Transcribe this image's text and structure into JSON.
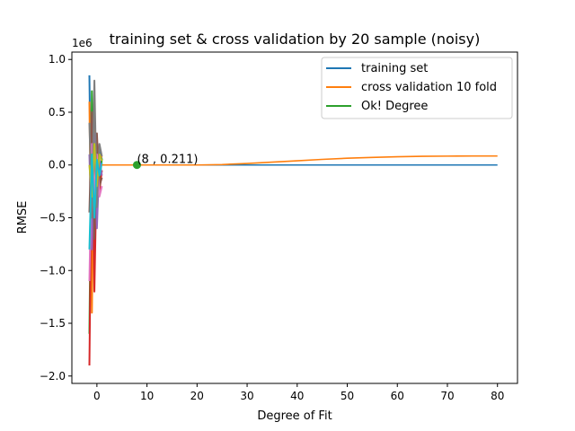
{
  "chart_data": {
    "type": "line",
    "title": "training set & cross validation by 20 sample (noisy)",
    "xlabel": "Degree of Fit",
    "ylabel": "RMSE",
    "y_offset_label": "1e6",
    "xlim": [
      -5,
      84
    ],
    "ylim": [
      -2.07,
      1.07
    ],
    "y_units_multiplier": 1000000,
    "x_ticks": [
      0,
      10,
      20,
      30,
      40,
      50,
      60,
      70,
      80
    ],
    "y_ticks": [
      -2.0,
      -1.5,
      -1.0,
      -0.5,
      0.0,
      0.5,
      1.0
    ],
    "x_tick_labels": [
      "0",
      "10",
      "20",
      "30",
      "40",
      "50",
      "60",
      "70",
      "80"
    ],
    "y_tick_labels": [
      "−2.0",
      "−1.5",
      "−1.0",
      "−0.5",
      "0.0",
      "0.5",
      "1.0"
    ],
    "grid": false,
    "legend_position": "top-right",
    "series": [
      {
        "name": "training set",
        "color": "#1f77b4",
        "x": [
          1,
          10,
          20,
          30,
          40,
          50,
          60,
          70,
          80
        ],
        "y": [
          0,
          0,
          0,
          0,
          0,
          0,
          0,
          0,
          0
        ]
      },
      {
        "name": "cross validation 10 fold",
        "color": "#ff7f0e",
        "x": [
          1,
          10,
          20,
          25,
          30,
          35,
          40,
          45,
          50,
          55,
          60,
          65,
          70,
          75,
          80
        ],
        "y": [
          0,
          0,
          0,
          0.004,
          0.014,
          0.027,
          0.04,
          0.053,
          0.064,
          0.072,
          0.078,
          0.082,
          0.084,
          0.085,
          0.085
        ]
      }
    ],
    "optimal_point": {
      "name": "Ok! Degree",
      "color": "#2ca02c",
      "x": 8,
      "y": 0.211,
      "label": "(8 , 0.211)"
    },
    "noise_fit_curves": {
      "x": [
        -1.5,
        -1.0,
        -0.5,
        0.0,
        0.5,
        1.0
      ],
      "colors": [
        "#1f77b4",
        "#ff7f0e",
        "#2ca02c",
        "#d62728",
        "#9467bd",
        "#8c564b",
        "#e377c2",
        "#7f7f7f",
        "#bcbd22",
        "#17becf"
      ],
      "curves": [
        [
          0.85,
          -1.05,
          0.55,
          -0.3,
          0.15,
          0.05
        ],
        [
          0.6,
          -1.4,
          0.4,
          -0.2,
          0.1,
          0.07
        ],
        [
          -1.6,
          0.7,
          -0.9,
          0.2,
          -0.15,
          0.06
        ],
        [
          -1.9,
          0.3,
          -1.2,
          0.1,
          -0.25,
          -0.05
        ],
        [
          0.1,
          -0.8,
          0.3,
          -0.6,
          0.05,
          -0.1
        ],
        [
          -0.45,
          0.5,
          -0.7,
          0.3,
          -0.2,
          -0.12
        ],
        [
          -1.1,
          0.2,
          -0.3,
          0.1,
          -0.3,
          -0.2
        ],
        [
          0.4,
          -0.5,
          0.8,
          -0.4,
          0.2,
          0.08
        ],
        [
          0.0,
          -0.3,
          0.2,
          -0.2,
          0.1,
          0.04
        ],
        [
          -0.8,
          0.1,
          -0.5,
          0.05,
          -0.1,
          0.02
        ]
      ]
    }
  }
}
